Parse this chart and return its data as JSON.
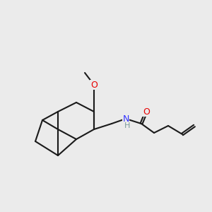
{
  "bg_color": "#ebebeb",
  "bond_color": "#1a1a1a",
  "bond_width": 1.5,
  "atom_colors": {
    "O": "#e60000",
    "N": "#3333ff",
    "C": "#1a1a1a",
    "H": "#7a9a9a"
  },
  "font_size_atom": 9,
  "font_size_label": 8
}
